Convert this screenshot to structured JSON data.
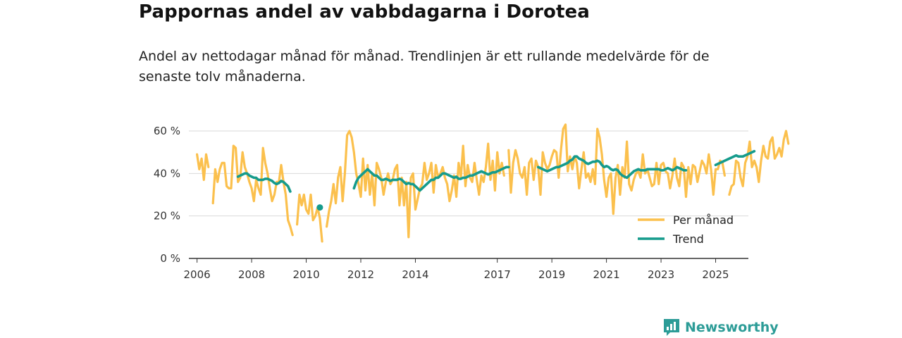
{
  "title": "Pappornas andel av vabbdagarna i Dorotea",
  "subtitle": "Andel av nettodagar månad för månad. Trendlinjen är ett rullande medelvärde för de senaste tolv månaderna.",
  "brand": {
    "name": "Newsworthy"
  },
  "colors": {
    "monthly": "#fbc04d",
    "trend": "#159b8c",
    "grid": "#d9d9d9",
    "axis": "#333333",
    "brand": "#2c9c97"
  },
  "chart_data": {
    "type": "line",
    "title": "Pappornas andel av vabbdagarna i Dorotea",
    "xlabel": "",
    "ylabel": "",
    "xlim": [
      2005.7,
      2026.2
    ],
    "ylim": [
      0,
      60
    ],
    "yticks": [
      0,
      20,
      40,
      60
    ],
    "ytick_labels": [
      "0 %",
      "20 %",
      "40 %",
      "60 %"
    ],
    "xticks": [
      2006,
      2008,
      2010,
      2012,
      2014,
      2017,
      2019,
      2021,
      2023,
      2025
    ],
    "xtick_labels": [
      "2006",
      "2008",
      "2010",
      "2012",
      "2014",
      "2017",
      "2019",
      "2021",
      "2023",
      "2025"
    ],
    "grid": true,
    "legend": {
      "position": "bottom-right",
      "entries": [
        "Per månad",
        "Trend"
      ]
    },
    "series": [
      {
        "name": "Per månad",
        "x_start": 2006.0,
        "step": 0.08333,
        "values": [
          49,
          42,
          47,
          37,
          49,
          43,
          null,
          26,
          42,
          36,
          42,
          45,
          45,
          34,
          33,
          33,
          53,
          52,
          36,
          38,
          50,
          43,
          40,
          36,
          33,
          27,
          37,
          33,
          30,
          52,
          45,
          40,
          33,
          27,
          30,
          36,
          36,
          44,
          36,
          30,
          18,
          15,
          11,
          null,
          16,
          30,
          25,
          30,
          23,
          21,
          30,
          18,
          20,
          24,
          19,
          8,
          null,
          15,
          22,
          27,
          35,
          26,
          38,
          43,
          27,
          40,
          58,
          60,
          57,
          50,
          40,
          35,
          29,
          47,
          32,
          44,
          30,
          40,
          25,
          45,
          42,
          38,
          30,
          36,
          40,
          35,
          37,
          42,
          44,
          25,
          38,
          25,
          36,
          10,
          38,
          40,
          23,
          28,
          33,
          35,
          45,
          37,
          40,
          45,
          31,
          44,
          38,
          40,
          43,
          38,
          35,
          27,
          32,
          39,
          29,
          45,
          38,
          53,
          34,
          44,
          38,
          36,
          45,
          37,
          30,
          39,
          36,
          43,
          54,
          37,
          46,
          32,
          50,
          40,
          45,
          39,
          null,
          51,
          31,
          45,
          51,
          47,
          40,
          38,
          43,
          30,
          45,
          47,
          37,
          46,
          43,
          30,
          50,
          45,
          42,
          44,
          48,
          51,
          50,
          38,
          51,
          61,
          63,
          41,
          48,
          42,
          48,
          45,
          33,
          42,
          50,
          38,
          40,
          36,
          42,
          35,
          61,
          57,
          49,
          37,
          29,
          38,
          40,
          21,
          38,
          44,
          30,
          43,
          38,
          55,
          35,
          32,
          37,
          40,
          41,
          38,
          49,
          40,
          42,
          38,
          34,
          35,
          45,
          35,
          44,
          45,
          41,
          40,
          33,
          39,
          47,
          38,
          34,
          45,
          43,
          29,
          43,
          35,
          44,
          43,
          36,
          41,
          46,
          44,
          40,
          49,
          42,
          30,
          42,
          42,
          46,
          45,
          39,
          null,
          30,
          34,
          35,
          46,
          45,
          38,
          34,
          45,
          48,
          55,
          43,
          46,
          43,
          36,
          46,
          53,
          48,
          47,
          55,
          57,
          47,
          49,
          52,
          48,
          56,
          60,
          54
        ]
      },
      {
        "name": "Trend",
        "x_start": 2006.0,
        "step": 0.08333,
        "values": [
          null,
          null,
          null,
          null,
          null,
          null,
          null,
          null,
          null,
          null,
          null,
          null,
          null,
          null,
          null,
          null,
          null,
          null,
          38.5,
          39,
          39.5,
          40,
          40,
          39,
          38.5,
          38,
          38,
          37,
          37,
          37,
          37.5,
          37.5,
          37,
          36.5,
          35.5,
          35,
          35.5,
          36.5,
          36,
          35,
          34,
          31.5,
          null,
          null,
          null,
          null,
          null,
          null,
          null,
          null,
          null,
          null,
          null,
          null,
          24,
          null,
          null,
          null,
          null,
          null,
          null,
          null,
          null,
          null,
          null,
          null,
          null,
          null,
          null,
          33,
          36,
          38,
          39,
          40,
          41,
          42,
          41,
          40,
          39,
          39,
          38,
          37,
          37,
          37.5,
          37,
          36.5,
          37,
          37,
          37,
          37.5,
          37,
          36,
          35,
          35.5,
          35,
          35,
          34,
          33,
          32,
          33,
          34,
          35,
          36,
          37,
          37,
          38,
          38,
          39,
          40,
          40,
          39.5,
          39,
          38.5,
          38,
          38.5,
          37.5,
          37.5,
          38,
          38,
          38.5,
          39,
          39,
          39.5,
          40,
          40.5,
          41,
          40.5,
          40,
          39.5,
          40,
          40.5,
          40.5,
          41,
          41.5,
          42,
          42.5,
          43,
          43,
          null,
          null,
          null,
          null,
          null,
          null,
          null,
          null,
          null,
          null,
          null,
          null,
          43,
          42.5,
          42,
          41.5,
          41,
          41.5,
          42,
          42.5,
          43,
          43,
          43.5,
          44,
          44.5,
          45,
          46,
          46.5,
          48,
          48,
          47,
          46.5,
          46,
          45,
          44.5,
          45,
          45.5,
          45.5,
          46,
          45.5,
          44,
          43,
          43.5,
          43,
          42,
          41.5,
          42,
          41.5,
          40,
          39,
          38.5,
          38,
          39,
          40,
          41,
          41.5,
          42,
          41.5,
          41.5,
          41.5,
          42,
          42,
          42,
          42,
          42,
          42,
          41.5,
          41.5,
          42,
          42.5,
          42,
          41.5,
          42,
          43,
          42.5,
          42,
          41.5,
          41.5,
          null,
          null,
          null,
          null,
          null,
          null,
          null,
          null,
          null,
          null,
          null,
          null,
          44,
          44.5,
          45,
          45.5,
          46,
          46.5,
          47,
          47.5,
          48,
          48.5,
          48,
          48,
          48,
          48.5,
          49,
          49.5,
          50,
          50.5
        ]
      }
    ]
  }
}
